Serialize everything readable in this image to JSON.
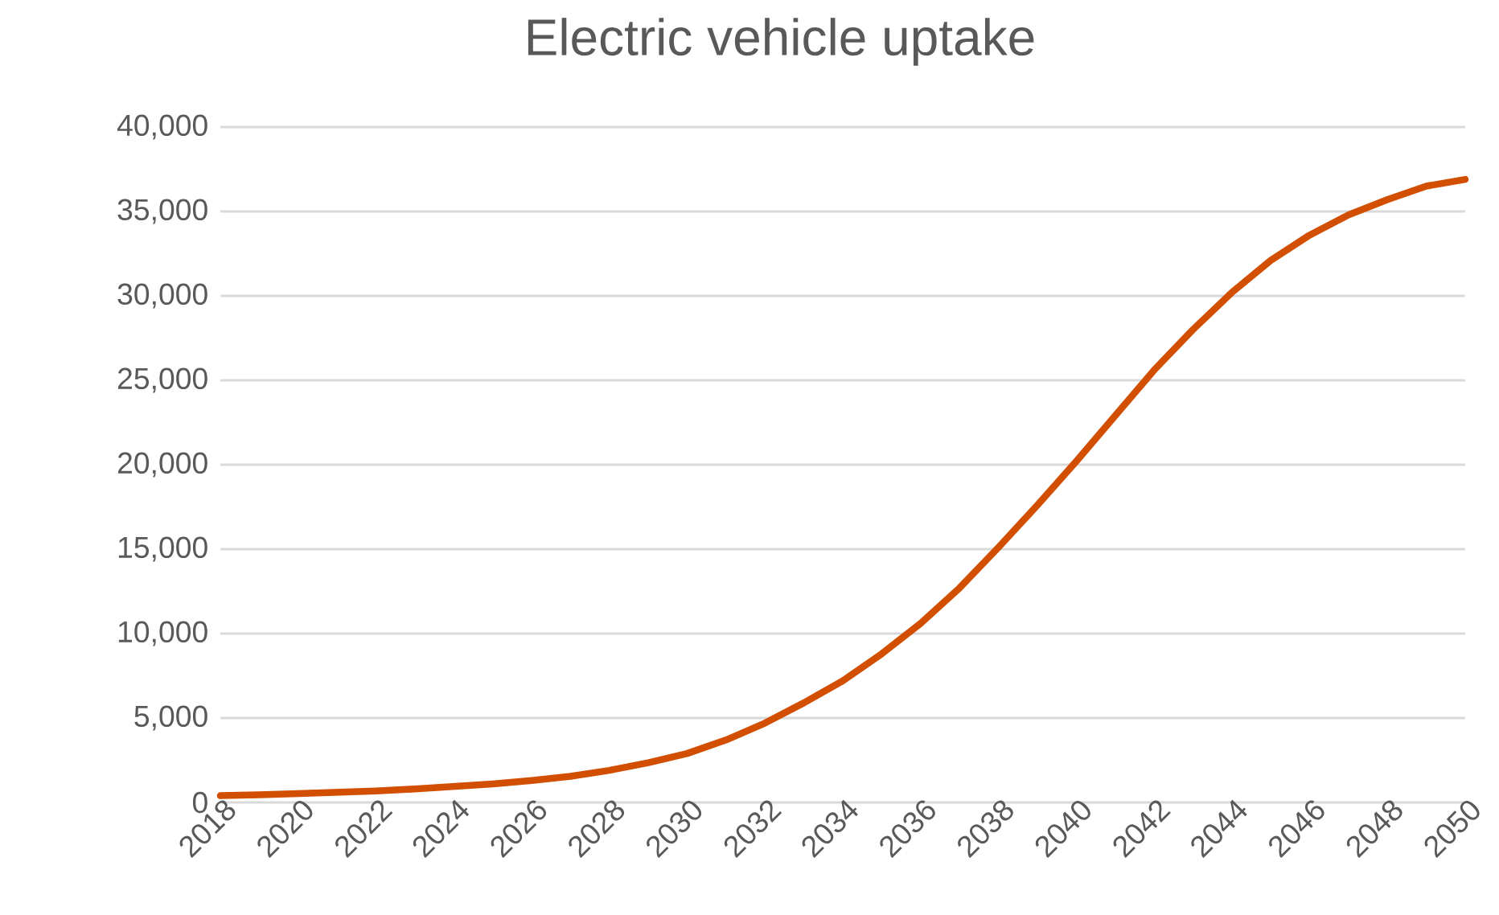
{
  "chart_data": {
    "type": "line",
    "title": "Electric vehicle uptake",
    "categories": [
      "2018",
      null,
      "2020",
      null,
      "2022",
      null,
      "2024",
      null,
      "2026",
      null,
      "2028",
      null,
      "2030",
      null,
      "2032",
      null,
      "2034",
      null,
      "2036",
      null,
      "2038",
      null,
      "2040",
      null,
      "2042",
      null,
      "2044",
      null,
      "2046",
      null,
      "2048",
      null,
      "2050"
    ],
    "series": [
      {
        "color": "#d24e01",
        "values": [
          400,
          450,
          520,
          600,
          680,
          800,
          950,
          1100,
          1300,
          1550,
          1900,
          2350,
          2900,
          3700,
          4700,
          5900,
          7200,
          8800,
          10600,
          12700,
          15100,
          17600,
          20200,
          22900,
          25600,
          28000,
          30200,
          32100,
          33600,
          34800,
          35700,
          36500,
          36900
        ]
      }
    ],
    "ylim": [
      0,
      40000
    ],
    "yticks": [
      {
        "value": 0,
        "label": "0"
      },
      {
        "value": 5000,
        "label": "5,000"
      },
      {
        "value": 10000,
        "label": "10,000"
      },
      {
        "value": 15000,
        "label": "15,000"
      },
      {
        "value": 20000,
        "label": "20,000"
      },
      {
        "value": 25000,
        "label": "25,000"
      },
      {
        "value": 30000,
        "label": "30,000"
      },
      {
        "value": 35000,
        "label": "35,000"
      },
      {
        "value": 40000,
        "label": "40,000"
      }
    ],
    "grid": "y"
  }
}
